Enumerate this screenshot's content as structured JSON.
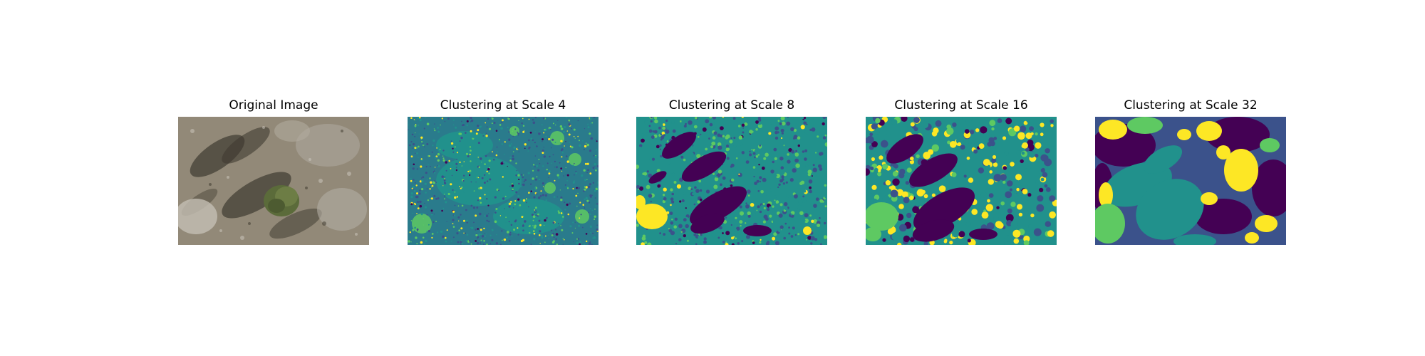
{
  "figure": {
    "panels": [
      {
        "id": "original",
        "title": "Original Image",
        "kind": "photo"
      },
      {
        "id": "scale4",
        "title": "Clustering at Scale 4",
        "kind": "cluster-map",
        "scale": 4
      },
      {
        "id": "scale8",
        "title": "Clustering at Scale 8",
        "kind": "cluster-map",
        "scale": 8
      },
      {
        "id": "scale16",
        "title": "Clustering at Scale 16",
        "kind": "cluster-map",
        "scale": 16
      },
      {
        "id": "scale32",
        "title": "Clustering at Scale 32",
        "kind": "cluster-map",
        "scale": 32
      }
    ],
    "colormap": [
      "#440154",
      "#3b528b",
      "#21918c",
      "#5ec962",
      "#fde725"
    ],
    "photo_palette": [
      "#8a8170",
      "#6e6759",
      "#a39d92",
      "#4a4538",
      "#5b6b3a",
      "#b8b2a8"
    ]
  }
}
